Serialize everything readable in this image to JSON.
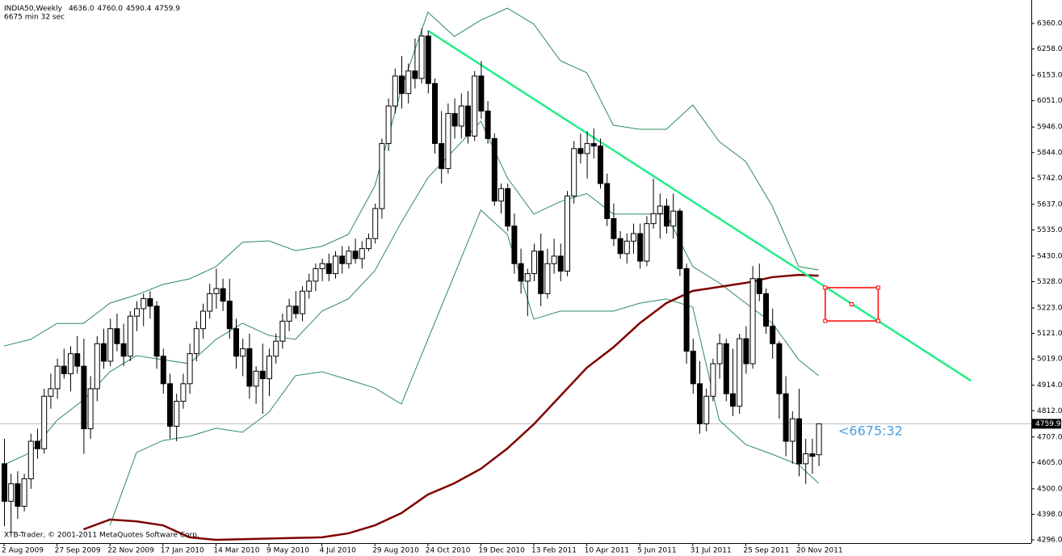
{
  "chart_data": {
    "type": "candlestick",
    "title": "INDIA50,Weekly",
    "last_labels": [
      "4636.0",
      "4760.0",
      "4590.4",
      "4759.9"
    ],
    "subtitle": "6675 min 32 sec",
    "countdown": "<6675:32",
    "copyright": "XTB-Trader, © 2001-2011 MetaQuotes Software Corp.",
    "categories": [
      "2 Aug 2009",
      null,
      null,
      null,
      null,
      null,
      null,
      null,
      "27 Sep 2009",
      null,
      null,
      null,
      null,
      null,
      null,
      null,
      "22 Nov 2009",
      null,
      null,
      null,
      null,
      null,
      null,
      null,
      "17 Jan 2010",
      null,
      null,
      null,
      null,
      null,
      null,
      null,
      "14 Mar 2010",
      null,
      null,
      null,
      null,
      null,
      null,
      null,
      "9 May 2010",
      null,
      null,
      null,
      null,
      null,
      null,
      null,
      "4 Jul 2010",
      null,
      null,
      null,
      null,
      null,
      null,
      null,
      "29 Aug 2010",
      null,
      null,
      null,
      null,
      null,
      null,
      null,
      "24 Oct 2010",
      null,
      null,
      null,
      null,
      null,
      null,
      null,
      "19 Dec 2010",
      null,
      null,
      null,
      null,
      null,
      null,
      null,
      "13 Feb 2011",
      null,
      null,
      null,
      null,
      null,
      null,
      null,
      "10 Apr 2011",
      null,
      null,
      null,
      null,
      null,
      null,
      null,
      "5 Jun 2011",
      null,
      null,
      null,
      null,
      null,
      null,
      null,
      "31 Jul 2011",
      null,
      null,
      null,
      null,
      null,
      null,
      null,
      "25 Sep 2011",
      null,
      null,
      null,
      null,
      null,
      null,
      null,
      "20 Nov 2011",
      null,
      null,
      null
    ],
    "ohlc": [
      [
        4600,
        4700,
        4350,
        4450
      ],
      [
        4450,
        4560,
        4320,
        4520
      ],
      [
        4520,
        4570,
        4380,
        4430
      ],
      [
        4430,
        4560,
        4410,
        4540
      ],
      [
        4540,
        4720,
        4500,
        4690
      ],
      [
        4690,
        4740,
        4620,
        4660
      ],
      [
        4660,
        4900,
        4640,
        4870
      ],
      [
        4870,
        4960,
        4820,
        4900
      ],
      [
        4900,
        5020,
        4860,
        4990
      ],
      [
        4990,
        5060,
        4940,
        4960
      ],
      [
        4960,
        5070,
        4890,
        5040
      ],
      [
        5040,
        5110,
        4960,
        4990
      ],
      [
        4990,
        5100,
        4640,
        4740
      ],
      [
        4740,
        4950,
        4700,
        4900
      ],
      [
        4900,
        5110,
        4850,
        5080
      ],
      [
        5080,
        5140,
        4980,
        5010
      ],
      [
        5010,
        5180,
        4990,
        5140
      ],
      [
        5140,
        5200,
        5050,
        5080
      ],
      [
        5080,
        5160,
        4990,
        5030
      ],
      [
        5030,
        5210,
        5010,
        5190
      ],
      [
        5190,
        5250,
        5130,
        5220
      ],
      [
        5220,
        5280,
        5150,
        5260
      ],
      [
        5260,
        5290,
        5180,
        5230
      ],
      [
        5230,
        5250,
        4980,
        5030
      ],
      [
        5030,
        5060,
        4880,
        4920
      ],
      [
        4920,
        4960,
        4700,
        4750
      ],
      [
        4750,
        4880,
        4690,
        4850
      ],
      [
        4850,
        4960,
        4820,
        4920
      ],
      [
        4920,
        5080,
        4880,
        5040
      ],
      [
        5040,
        5170,
        5010,
        5140
      ],
      [
        5140,
        5240,
        5100,
        5210
      ],
      [
        5210,
        5320,
        5180,
        5280
      ],
      [
        5280,
        5380,
        5220,
        5300
      ],
      [
        5300,
        5340,
        5210,
        5250
      ],
      [
        5250,
        5340,
        5100,
        5140
      ],
      [
        5140,
        5180,
        4980,
        5030
      ],
      [
        5030,
        5100,
        4950,
        5060
      ],
      [
        5060,
        5120,
        4860,
        4910
      ],
      [
        4910,
        4990,
        4840,
        4970
      ],
      [
        4970,
        5080,
        4800,
        4940
      ],
      [
        4940,
        5060,
        4870,
        5030
      ],
      [
        5030,
        5120,
        5000,
        5090
      ],
      [
        5090,
        5200,
        5060,
        5170
      ],
      [
        5170,
        5260,
        5130,
        5230
      ],
      [
        5230,
        5290,
        5180,
        5200
      ],
      [
        5200,
        5310,
        5170,
        5290
      ],
      [
        5290,
        5360,
        5260,
        5330
      ],
      [
        5330,
        5400,
        5290,
        5380
      ],
      [
        5380,
        5420,
        5330,
        5400
      ],
      [
        5400,
        5440,
        5330,
        5360
      ],
      [
        5360,
        5450,
        5340,
        5430
      ],
      [
        5430,
        5470,
        5360,
        5400
      ],
      [
        5400,
        5470,
        5380,
        5450
      ],
      [
        5450,
        5500,
        5400,
        5420
      ],
      [
        5420,
        5490,
        5380,
        5460
      ],
      [
        5460,
        5520,
        5450,
        5500
      ],
      [
        5500,
        5640,
        5480,
        5620
      ],
      [
        5620,
        5900,
        5580,
        5880
      ],
      [
        5880,
        6060,
        5850,
        6030
      ],
      [
        6030,
        6180,
        6000,
        6150
      ],
      [
        6150,
        6230,
        6020,
        6080
      ],
      [
        6080,
        6200,
        6040,
        6170
      ],
      [
        6170,
        6300,
        6100,
        6140
      ],
      [
        6140,
        6340,
        6120,
        6310
      ],
      [
        6310,
        6330,
        6080,
        6120
      ],
      [
        6120,
        6140,
        5840,
        5880
      ],
      [
        5880,
        6010,
        5720,
        5780
      ],
      [
        5780,
        6040,
        5760,
        6000
      ],
      [
        6000,
        6060,
        5900,
        5950
      ],
      [
        5950,
        6080,
        5900,
        6030
      ],
      [
        6030,
        6090,
        5880,
        5910
      ],
      [
        5910,
        6170,
        5890,
        6150
      ],
      [
        6150,
        6210,
        5980,
        6010
      ],
      [
        6010,
        6050,
        5880,
        5900
      ],
      [
        5900,
        5920,
        5630,
        5650
      ],
      [
        5650,
        5720,
        5600,
        5700
      ],
      [
        5700,
        5720,
        5530,
        5550
      ],
      [
        5550,
        5600,
        5360,
        5400
      ],
      [
        5400,
        5460,
        5280,
        5330
      ],
      [
        5330,
        5380,
        5190,
        5360
      ],
      [
        5360,
        5480,
        5330,
        5450
      ],
      [
        5450,
        5520,
        5230,
        5280
      ],
      [
        5280,
        5460,
        5260,
        5400
      ],
      [
        5400,
        5500,
        5360,
        5430
      ],
      [
        5430,
        5480,
        5330,
        5370
      ],
      [
        5370,
        5690,
        5350,
        5670
      ],
      [
        5670,
        5890,
        5640,
        5860
      ],
      [
        5860,
        5920,
        5800,
        5840
      ],
      [
        5840,
        5930,
        5740,
        5880
      ],
      [
        5880,
        5940,
        5820,
        5870
      ],
      [
        5870,
        5900,
        5700,
        5720
      ],
      [
        5720,
        5760,
        5550,
        5580
      ],
      [
        5580,
        5640,
        5470,
        5500
      ],
      [
        5500,
        5530,
        5420,
        5440
      ],
      [
        5440,
        5520,
        5400,
        5490
      ],
      [
        5490,
        5560,
        5440,
        5520
      ],
      [
        5520,
        5560,
        5380,
        5410
      ],
      [
        5410,
        5590,
        5390,
        5560
      ],
      [
        5560,
        5740,
        5540,
        5600
      ],
      [
        5600,
        5680,
        5500,
        5630
      ],
      [
        5630,
        5660,
        5520,
        5550
      ],
      [
        5550,
        5680,
        5500,
        5610
      ],
      [
        5610,
        5620,
        5350,
        5380
      ],
      [
        5380,
        5400,
        5000,
        5050
      ],
      [
        5050,
        5100,
        4880,
        4920
      ],
      [
        4920,
        5010,
        4720,
        4760
      ],
      [
        4760,
        4900,
        4730,
        4870
      ],
      [
        4870,
        5020,
        4850,
        5000
      ],
      [
        5000,
        5120,
        4940,
        5080
      ],
      [
        5080,
        5100,
        4850,
        4880
      ],
      [
        4880,
        5060,
        4790,
        4830
      ],
      [
        4830,
        5120,
        4800,
        5100
      ],
      [
        5100,
        5150,
        4960,
        5000
      ],
      [
        5000,
        5390,
        4980,
        5340
      ],
      [
        5340,
        5400,
        5250,
        5280
      ],
      [
        5280,
        5300,
        5120,
        5150
      ],
      [
        5150,
        5220,
        5020,
        5080
      ],
      [
        5080,
        5090,
        4780,
        4880
      ],
      [
        4880,
        4950,
        4630,
        4690
      ],
      [
        4690,
        4810,
        4600,
        4780
      ],
      [
        4780,
        4900,
        4550,
        4600
      ],
      [
        4600,
        4700,
        4520,
        4640
      ],
      [
        4640,
        4700,
        4560,
        4630
      ],
      [
        4636.0,
        4760.0,
        4590.4,
        4759.9
      ]
    ],
    "lines": [
      {
        "color": "#2e8b57",
        "x": [
          0,
          4,
          8,
          12,
          16,
          20,
          24,
          28,
          32,
          36,
          40,
          44,
          48,
          52,
          56,
          60,
          64,
          68,
          72,
          76,
          80,
          84,
          88,
          92,
          96,
          100,
          104,
          108,
          112,
          116,
          120,
          123
        ],
        "values": [
          5071,
          5097,
          5161,
          5161,
          5242,
          5275,
          5317,
          5339,
          5388,
          5485,
          5491,
          5452,
          5469,
          5517,
          5711,
          6098,
          6405,
          6308,
          6373,
          6421,
          6357,
          6211,
          6163,
          5953,
          5937,
          5937,
          6034,
          5888,
          5808,
          5630,
          5388,
          5375
        ]
      },
      {
        "color": "#2e8b57",
        "x": [
          0,
          4,
          8,
          12,
          16,
          20,
          24,
          28,
          32,
          36,
          40,
          44,
          48,
          52,
          56,
          60,
          64,
          68,
          72,
          76,
          80,
          84,
          88,
          92,
          96,
          100,
          104,
          108,
          112,
          116,
          120,
          123
        ],
        "values": [
          4596,
          4645,
          4774,
          4855,
          4968,
          5032,
          5016,
          5000,
          5097,
          5162,
          5113,
          5097,
          5210,
          5259,
          5372,
          5566,
          5743,
          5856,
          5969,
          5743,
          5598,
          5648,
          5680,
          5598,
          5598,
          5598,
          5388,
          5323,
          5242,
          5162,
          5016,
          4952
        ]
      },
      {
        "color": "#2e8b57",
        "x": [
          16,
          20,
          24,
          28,
          32,
          36,
          40,
          44,
          48,
          52,
          56,
          60,
          64,
          68,
          72,
          76,
          80,
          84,
          88,
          92,
          96,
          100,
          104,
          108,
          112,
          116,
          120,
          123
        ],
        "values": [
          4354,
          4645,
          4693,
          4710,
          4742,
          4726,
          4806,
          4952,
          4968,
          4936,
          4903,
          4839,
          5097,
          5355,
          5614,
          5517,
          5178,
          5210,
          5210,
          5210,
          5242,
          5259,
          5226,
          4774,
          4677,
          4638,
          4596,
          4522
        ]
      },
      {
        "color": "#800000",
        "x": [
          12,
          16,
          20,
          24,
          28,
          32,
          48,
          52,
          56,
          60,
          64,
          68,
          72,
          76,
          80,
          84,
          88,
          92,
          96,
          100,
          104,
          108,
          112,
          116,
          120,
          123
        ],
        "values": [
          4338,
          4377,
          4370,
          4354,
          4306,
          4296,
          4306,
          4322,
          4354,
          4403,
          4477,
          4522,
          4580,
          4661,
          4758,
          4871,
          4984,
          5065,
          5162,
          5242,
          5291,
          5307,
          5323,
          5346,
          5355,
          5352
        ]
      },
      {
        "color": "#22ee88",
        "x": [
          64,
          146
        ],
        "values": [
          6331,
          4932
        ]
      }
    ],
    "zone": {
      "x": [
        124,
        132
      ],
      "y": [
        5171,
        5304
      ],
      "color": "#ff0000"
    },
    "ylim": [
      4296,
      6360
    ],
    "yticks": [
      {
        "value": 6360,
        "label": "6360.0"
      },
      {
        "value": 6258,
        "label": "6258.0"
      },
      {
        "value": 6153,
        "label": "6153.0"
      },
      {
        "value": 6051,
        "label": "6051.0"
      },
      {
        "value": 5946,
        "label": "5946.0"
      },
      {
        "value": 5844,
        "label": "5844.0"
      },
      {
        "value": 5742,
        "label": "5742.0"
      },
      {
        "value": 5637,
        "label": "5637.0"
      },
      {
        "value": 5535,
        "label": "5535.0"
      },
      {
        "value": 5430,
        "label": "5430.0"
      },
      {
        "value": 5328,
        "label": "5328.0"
      },
      {
        "value": 5223,
        "label": "5223.0"
      },
      {
        "value": 5121,
        "label": "5121.0"
      },
      {
        "value": 5019,
        "label": "5019.0"
      },
      {
        "value": 4914,
        "label": "4914.0"
      },
      {
        "value": 4812,
        "label": "4812.0"
      },
      {
        "value": 4707,
        "label": "4707.0"
      },
      {
        "value": 4605,
        "label": "4605.0"
      },
      {
        "value": 4500,
        "label": "4500.0"
      },
      {
        "value": 4398,
        "label": "4398.0"
      },
      {
        "value": 4296,
        "label": "4296.0"
      }
    ],
    "up_color": "#ffffff",
    "down_color": "#000000"
  }
}
